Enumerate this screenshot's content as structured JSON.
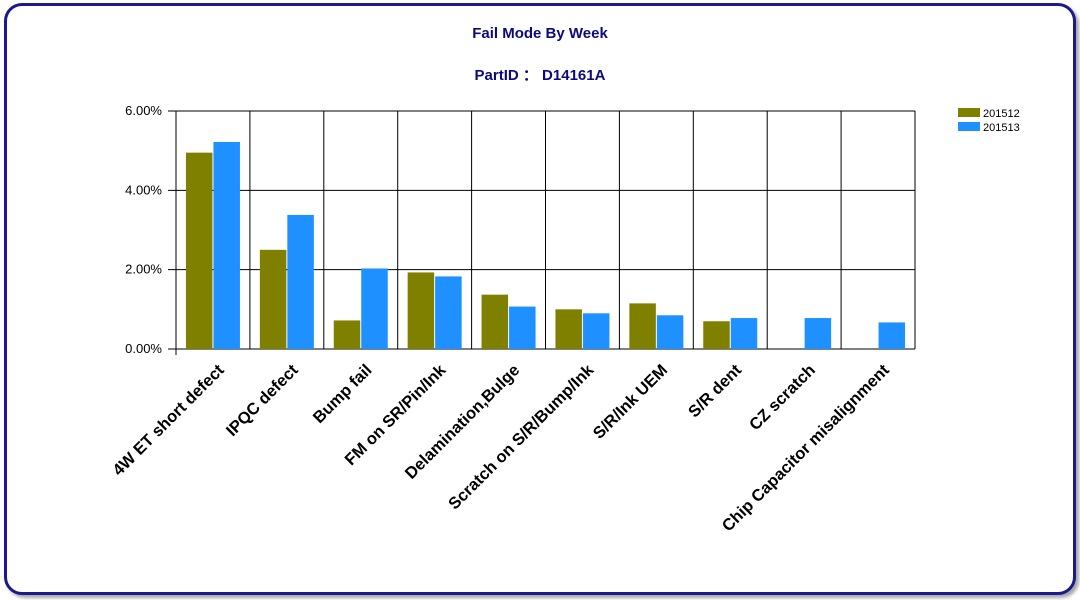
{
  "chart_data": {
    "type": "bar",
    "title": "Fail Mode By Week",
    "subtitle": "PartID ： D14161A",
    "categories": [
      "4W ET short defect",
      "IPQC defect",
      "Bump fail",
      "FM on SR/Pin/Ink",
      "Delamination,Bulge",
      "Scratch on S/R/Bump/Ink",
      "S/R/Ink UEM",
      "S/R dent",
      "CZ scratch",
      "Chip Capacitor misalignment"
    ],
    "series": [
      {
        "name": "201512",
        "color": "#808000",
        "values": [
          4.95,
          2.5,
          0.72,
          1.93,
          1.37,
          1.0,
          1.15,
          0.7,
          null,
          null
        ]
      },
      {
        "name": "201513",
        "color": "#1e90ff",
        "values": [
          5.22,
          3.38,
          2.03,
          1.83,
          1.07,
          0.9,
          0.85,
          0.78,
          0.78,
          0.67
        ]
      }
    ],
    "ylim": [
      0,
      6
    ],
    "yticks": [
      "0.00%",
      "2.00%",
      "4.00%",
      "6.00%"
    ],
    "ytick_values": [
      0,
      2,
      4,
      6
    ],
    "grid": true,
    "legend_position": "top-right"
  }
}
